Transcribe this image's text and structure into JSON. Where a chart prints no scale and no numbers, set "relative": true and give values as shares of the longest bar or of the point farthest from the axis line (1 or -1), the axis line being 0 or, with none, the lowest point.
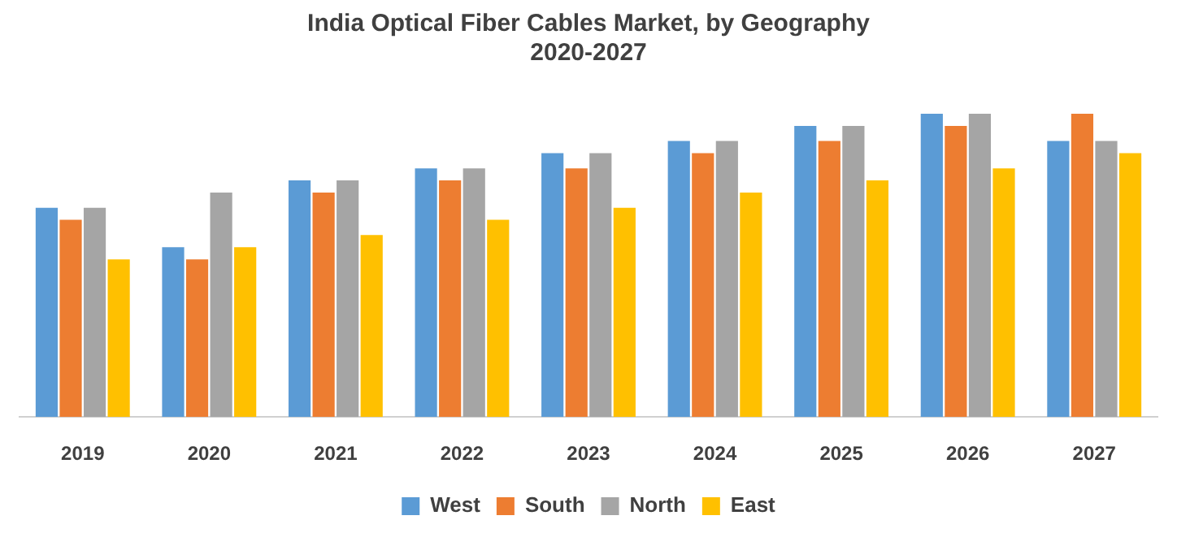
{
  "chart_data": {
    "type": "bar",
    "title": [
      "India Optical Fiber Cables Market, by Geography",
      "2020-2027"
    ],
    "relative": true,
    "grid": false,
    "legend": "bottom",
    "categories": [
      "2019",
      "2020",
      "2021",
      "2022",
      "2023",
      "2024",
      "2025",
      "2026",
      "2027"
    ],
    "series": [
      {
        "name": "West",
        "color": "#5b9bd5",
        "values": [
          0.69,
          0.56,
          0.78,
          0.82,
          0.87,
          0.91,
          0.96,
          1,
          0.91
        ]
      },
      {
        "name": "South",
        "color": "#ed7d31",
        "values": [
          0.65,
          0.52,
          0.74,
          0.78,
          0.82,
          0.87,
          0.91,
          0.96,
          1
        ]
      },
      {
        "name": "North",
        "color": "#a5a5a5",
        "values": [
          0.69,
          0.74,
          0.78,
          0.82,
          0.87,
          0.91,
          0.96,
          1,
          0.91
        ]
      },
      {
        "name": "East",
        "color": "#ffc000",
        "values": [
          0.52,
          0.56,
          0.6,
          0.65,
          0.69,
          0.74,
          0.78,
          0.82,
          0.87
        ]
      }
    ]
  }
}
